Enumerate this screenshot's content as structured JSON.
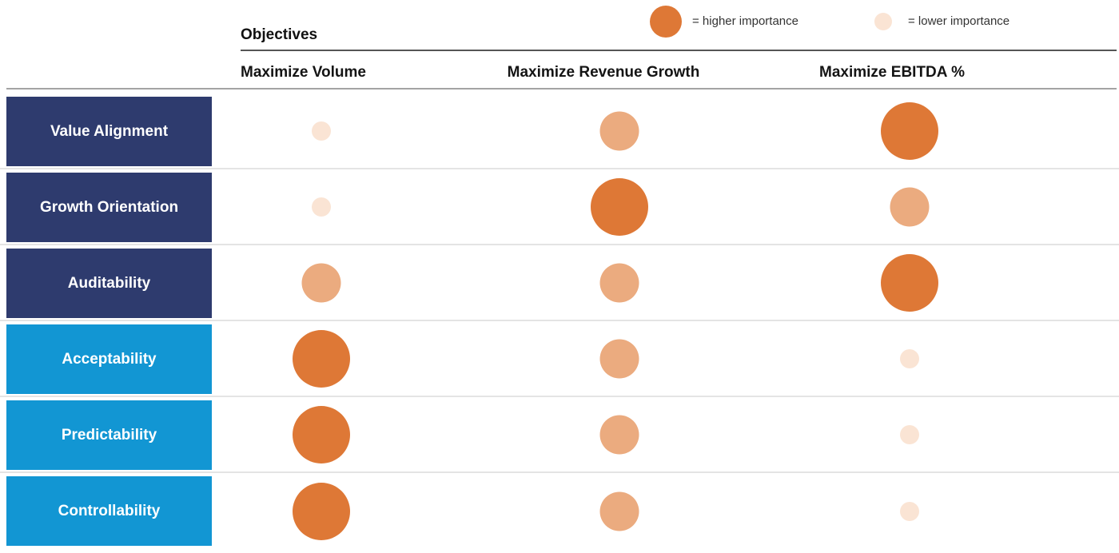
{
  "legend": {
    "higher_label": "= higher importance",
    "lower_label": "= lower importance"
  },
  "header": {
    "group_label": "Objectives",
    "col1": "Maximize Volume",
    "col2": "Maximize Revenue Growth",
    "col3": "Maximize EBITDA %"
  },
  "rows": [
    {
      "label": "Value Alignment",
      "group": "navy",
      "c1": "low",
      "c2": "medium",
      "c3": "high"
    },
    {
      "label": "Growth Orientation",
      "group": "navy",
      "c1": "low",
      "c2": "high",
      "c3": "medium"
    },
    {
      "label": "Auditability",
      "group": "navy",
      "c1": "medium",
      "c2": "medium",
      "c3": "high"
    },
    {
      "label": "Acceptability",
      "group": "blue",
      "c1": "high",
      "c2": "medium",
      "c3": "low"
    },
    {
      "label": "Predictability",
      "group": "blue",
      "c1": "high",
      "c2": "medium",
      "c3": "low"
    },
    {
      "label": "Controllability",
      "group": "blue",
      "c1": "high",
      "c2": "medium",
      "c3": "low"
    }
  ],
  "colors": {
    "navy_row": "#2E3B6E",
    "blue_row": "#1296D3",
    "bubble_high": "#DE7836",
    "bubble_medium": "#EBAB7F",
    "bubble_low": "#FAE4D4"
  },
  "chart_data": {
    "type": "heatmap",
    "title": "Objectives",
    "columns": [
      "Maximize Volume",
      "Maximize Revenue Growth",
      "Maximize EBITDA %"
    ],
    "rows": [
      "Value Alignment",
      "Growth Orientation",
      "Auditability",
      "Acceptability",
      "Predictability",
      "Controllability"
    ],
    "values": [
      [
        "low",
        "medium",
        "high"
      ],
      [
        "low",
        "high",
        "medium"
      ],
      [
        "medium",
        "medium",
        "high"
      ],
      [
        "high",
        "medium",
        "low"
      ],
      [
        "high",
        "medium",
        "low"
      ],
      [
        "high",
        "medium",
        "low"
      ]
    ],
    "value_encoding": "bubble size and color: high = large dark-orange, medium = mid peach, low = small pale-pink",
    "legend_entries": [
      "= higher importance",
      "= lower importance"
    ],
    "legend_position": "top-right",
    "row_group_colors": {
      "first_three_rows": "#2E3B6E",
      "last_three_rows": "#1296D3"
    }
  }
}
